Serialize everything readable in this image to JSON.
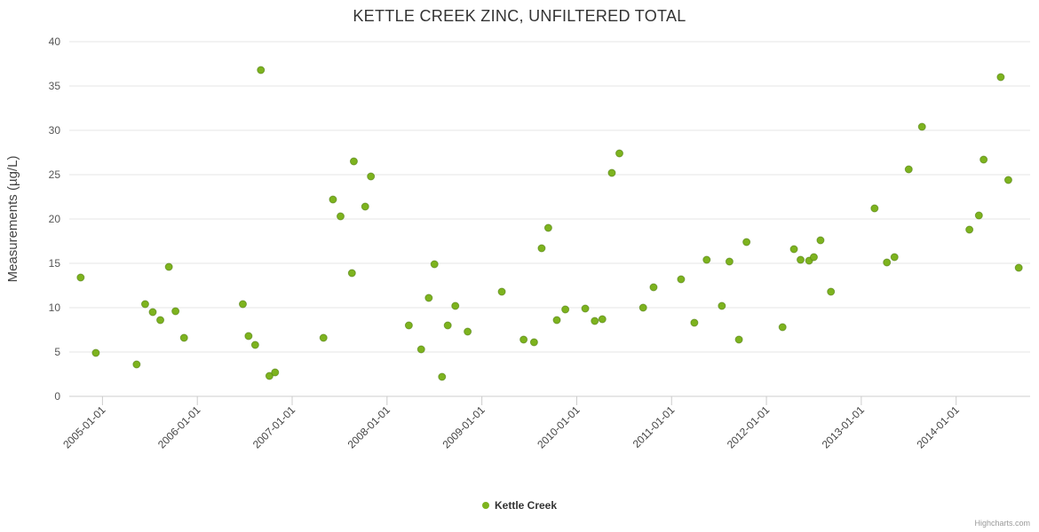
{
  "chart": {
    "title": "KETTLE CREEK ZINC, UNFILTERED TOTAL",
    "credits": "Highcharts.com"
  },
  "chart_data": {
    "type": "scatter",
    "title": "KETTLE CREEK ZINC, UNFILTERED TOTAL",
    "xlabel": "",
    "ylabel": "Measurements (µg/L)",
    "ylim": [
      0,
      40
    ],
    "y_ticks": [
      0,
      5,
      10,
      15,
      20,
      25,
      30,
      35,
      40
    ],
    "xlim": [
      2004.65,
      2014.78
    ],
    "grid": "horizontal",
    "legend_position": "bottom-center",
    "x_ticks": [
      {
        "value": 2005,
        "label": "2005-01-01"
      },
      {
        "value": 2006,
        "label": "2006-01-01"
      },
      {
        "value": 2007,
        "label": "2007-01-01"
      },
      {
        "value": 2008,
        "label": "2008-01-01"
      },
      {
        "value": 2009,
        "label": "2009-01-01"
      },
      {
        "value": 2010,
        "label": "2010-01-01"
      },
      {
        "value": 2011,
        "label": "2011-01-01"
      },
      {
        "value": 2012,
        "label": "2012-01-01"
      },
      {
        "value": 2013,
        "label": "2013-01-01"
      },
      {
        "value": 2014,
        "label": "2014-01-01"
      }
    ],
    "series": [
      {
        "name": "Kettle Creek",
        "color": "#7db31e",
        "marker_stroke": "#4e7c10",
        "points": [
          [
            2004.77,
            13.4
          ],
          [
            2004.93,
            4.9
          ],
          [
            2005.36,
            3.6
          ],
          [
            2005.45,
            10.4
          ],
          [
            2005.53,
            9.5
          ],
          [
            2005.61,
            8.6
          ],
          [
            2005.7,
            14.6
          ],
          [
            2005.77,
            9.6
          ],
          [
            2005.86,
            6.6
          ],
          [
            2006.48,
            10.4
          ],
          [
            2006.54,
            6.8
          ],
          [
            2006.61,
            5.8
          ],
          [
            2006.67,
            36.8
          ],
          [
            2006.76,
            2.3
          ],
          [
            2006.82,
            2.7
          ],
          [
            2007.33,
            6.6
          ],
          [
            2007.43,
            22.2
          ],
          [
            2007.51,
            20.3
          ],
          [
            2007.63,
            13.9
          ],
          [
            2007.65,
            26.5
          ],
          [
            2007.77,
            21.4
          ],
          [
            2007.83,
            24.8
          ],
          [
            2008.23,
            8.0
          ],
          [
            2008.36,
            5.3
          ],
          [
            2008.44,
            11.1
          ],
          [
            2008.5,
            14.9
          ],
          [
            2008.58,
            2.2
          ],
          [
            2008.64,
            8.0
          ],
          [
            2008.72,
            10.2
          ],
          [
            2008.85,
            7.3
          ],
          [
            2009.21,
            11.8
          ],
          [
            2009.44,
            6.4
          ],
          [
            2009.55,
            6.1
          ],
          [
            2009.63,
            16.7
          ],
          [
            2009.7,
            19.0
          ],
          [
            2009.79,
            8.6
          ],
          [
            2009.88,
            9.8
          ],
          [
            2010.09,
            9.9
          ],
          [
            2010.19,
            8.5
          ],
          [
            2010.27,
            8.7
          ],
          [
            2010.37,
            25.2
          ],
          [
            2010.45,
            27.4
          ],
          [
            2010.7,
            10.0
          ],
          [
            2010.81,
            12.3
          ],
          [
            2011.1,
            13.2
          ],
          [
            2011.24,
            8.3
          ],
          [
            2011.37,
            15.4
          ],
          [
            2011.53,
            10.2
          ],
          [
            2011.61,
            15.2
          ],
          [
            2011.71,
            6.4
          ],
          [
            2011.79,
            17.4
          ],
          [
            2012.17,
            7.8
          ],
          [
            2012.29,
            16.6
          ],
          [
            2012.36,
            15.4
          ],
          [
            2012.45,
            15.3
          ],
          [
            2012.5,
            15.7
          ],
          [
            2012.57,
            17.6
          ],
          [
            2012.68,
            11.8
          ],
          [
            2013.14,
            21.2
          ],
          [
            2013.27,
            15.1
          ],
          [
            2013.35,
            15.7
          ],
          [
            2013.5,
            25.6
          ],
          [
            2013.64,
            30.4
          ],
          [
            2014.14,
            18.8
          ],
          [
            2014.24,
            20.4
          ],
          [
            2014.29,
            26.7
          ],
          [
            2014.47,
            36.0
          ],
          [
            2014.55,
            24.4
          ],
          [
            2014.66,
            14.5
          ]
        ]
      }
    ]
  }
}
